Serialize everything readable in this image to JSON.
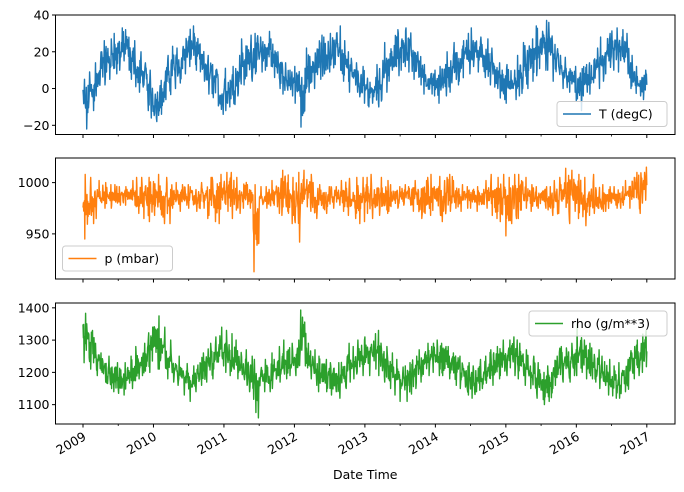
{
  "chart_data": [
    {
      "type": "line",
      "series": [
        {
          "name": "T (degC)",
          "color": "#1f77b4",
          "monthly_min": [
            -22,
            -12,
            -4,
            2,
            5,
            8,
            10,
            10,
            5,
            -2,
            -1,
            -16,
            -18,
            -14,
            -6,
            0,
            3,
            8,
            12,
            10,
            4,
            -3,
            -5,
            -14,
            -12,
            -10,
            -4,
            2,
            4,
            8,
            9,
            10,
            6,
            0,
            -3,
            -4,
            -8,
            -21,
            -2,
            0,
            5,
            8,
            9,
            10,
            4,
            -2,
            -2,
            -8,
            -10,
            -8,
            -10,
            -2,
            4,
            7,
            10,
            9,
            5,
            2,
            -3,
            -4,
            -8,
            -4,
            -2,
            2,
            4,
            8,
            12,
            9,
            6,
            2,
            0,
            -6,
            -8,
            -6,
            -4,
            0,
            4,
            7,
            10,
            10,
            4,
            0,
            -2,
            -2,
            -12,
            -4,
            -3,
            0,
            4,
            8,
            10,
            9,
            8,
            0,
            -4,
            -6
          ],
          "monthly_max": [
            5,
            9,
            14,
            26,
            27,
            30,
            33,
            32,
            26,
            20,
            14,
            10,
            4,
            8,
            18,
            23,
            22,
            32,
            34,
            28,
            22,
            18,
            13,
            5,
            11,
            12,
            18,
            27,
            29,
            30,
            28,
            31,
            27,
            20,
            14,
            10,
            12,
            11,
            22,
            25,
            29,
            28,
            30,
            34,
            26,
            20,
            14,
            12,
            10,
            6,
            13,
            25,
            24,
            32,
            35,
            33,
            25,
            20,
            13,
            10,
            12,
            13,
            20,
            25,
            26,
            30,
            33,
            28,
            27,
            22,
            14,
            10,
            13,
            10,
            18,
            25,
            27,
            34,
            37,
            36,
            24,
            18,
            17,
            12,
            12,
            13,
            14,
            22,
            28,
            30,
            33,
            32,
            30,
            18,
            12,
            10
          ]
        }
      ],
      "yticks": [
        40,
        20,
        0,
        -20
      ],
      "ylim": [
        -25,
        40
      ],
      "legend": "lower-right"
    },
    {
      "type": "line",
      "series": [
        {
          "name": "p (mbar)",
          "color": "#ff7f0e",
          "monthly_min": [
            945,
            960,
            965,
            975,
            975,
            980,
            978,
            978,
            978,
            970,
            965,
            962,
            968,
            960,
            960,
            975,
            972,
            978,
            975,
            972,
            975,
            965,
            962,
            960,
            972,
            965,
            970,
            975,
            975,
            913,
            975,
            975,
            978,
            968,
            972,
            960,
            942,
            975,
            972,
            965,
            975,
            970,
            975,
            978,
            972,
            968,
            965,
            960,
            970,
            965,
            968,
            970,
            972,
            975,
            978,
            978,
            972,
            965,
            970,
            968,
            968,
            962,
            972,
            975,
            972,
            975,
            975,
            972,
            975,
            968,
            965,
            962,
            948,
            960,
            965,
            975,
            972,
            975,
            975,
            972,
            968,
            970,
            960,
            972,
            965,
            958,
            968,
            970,
            972,
            972,
            975,
            975,
            978,
            975,
            970,
            980
          ],
          "monthly_max": [
            1008,
            1005,
            1002,
            1000,
            998,
            998,
            996,
            996,
            1002,
            1005,
            1005,
            1005,
            1008,
            1002,
            1005,
            1000,
            998,
            998,
            996,
            996,
            1000,
            1005,
            1005,
            1008,
            1010,
            1010,
            1005,
            1002,
            998,
            998,
            996,
            996,
            1002,
            1004,
            1012,
            1005,
            1010,
            1012,
            1008,
            1000,
            998,
            996,
            996,
            996,
            1002,
            1004,
            1005,
            1005,
            1005,
            1008,
            1005,
            1002,
            998,
            996,
            998,
            996,
            1002,
            1004,
            1005,
            1008,
            1006,
            1002,
            1008,
            1002,
            998,
            996,
            996,
            996,
            1002,
            1008,
            1005,
            1008,
            1005,
            1008,
            1008,
            1005,
            998,
            996,
            996,
            996,
            1002,
            1005,
            1014,
            1012,
            1008,
            1005,
            1008,
            1000,
            998,
            996,
            996,
            996,
            1002,
            1005,
            1010,
            1015
          ]
        }
      ],
      "yticks": [
        1000,
        950
      ],
      "ylim": [
        906,
        1024
      ],
      "legend": "lower-left"
    },
    {
      "type": "line",
      "series": [
        {
          "name": "rho (g/m**3)",
          "color": "#2ca02c",
          "monthly_min": [
            1230,
            1210,
            1190,
            1170,
            1150,
            1140,
            1135,
            1130,
            1150,
            1180,
            1190,
            1200,
            1210,
            1210,
            1180,
            1170,
            1160,
            1130,
            1110,
            1140,
            1160,
            1170,
            1180,
            1220,
            1200,
            1190,
            1180,
            1160,
            1140,
            1059,
            1140,
            1140,
            1150,
            1170,
            1180,
            1190,
            1190,
            1220,
            1180,
            1160,
            1140,
            1140,
            1130,
            1120,
            1150,
            1170,
            1180,
            1190,
            1190,
            1210,
            1190,
            1170,
            1150,
            1130,
            1110,
            1110,
            1150,
            1170,
            1190,
            1200,
            1190,
            1190,
            1180,
            1160,
            1150,
            1130,
            1120,
            1140,
            1150,
            1160,
            1180,
            1190,
            1190,
            1190,
            1180,
            1160,
            1150,
            1120,
            1100,
            1110,
            1150,
            1170,
            1170,
            1190,
            1190,
            1180,
            1180,
            1170,
            1150,
            1130,
            1120,
            1120,
            1140,
            1180,
            1190,
            1200
          ],
          "monthly_max": [
            1383,
            1330,
            1290,
            1260,
            1250,
            1230,
            1225,
            1230,
            1250,
            1280,
            1290,
            1340,
            1375,
            1340,
            1300,
            1260,
            1250,
            1240,
            1220,
            1230,
            1260,
            1290,
            1310,
            1340,
            1330,
            1320,
            1300,
            1270,
            1250,
            1240,
            1230,
            1240,
            1260,
            1280,
            1300,
            1290,
            1300,
            1393,
            1290,
            1270,
            1250,
            1240,
            1230,
            1230,
            1260,
            1290,
            1300,
            1300,
            1310,
            1320,
            1330,
            1280,
            1260,
            1240,
            1220,
            1230,
            1250,
            1270,
            1290,
            1290,
            1300,
            1290,
            1280,
            1260,
            1250,
            1230,
            1220,
            1240,
            1250,
            1270,
            1280,
            1300,
            1300,
            1310,
            1290,
            1270,
            1250,
            1230,
            1200,
            1220,
            1250,
            1280,
            1300,
            1290,
            1350,
            1300,
            1290,
            1270,
            1250,
            1240,
            1220,
            1230,
            1240,
            1280,
            1300,
            1330
          ]
        }
      ],
      "yticks": [
        1400,
        1300,
        1200,
        1100
      ],
      "ylim": [
        1040,
        1415
      ],
      "legend": "upper-right"
    }
  ],
  "x_axis": {
    "label": "Date Time",
    "ticks": [
      "2009",
      "2010",
      "2011",
      "2012",
      "2013",
      "2014",
      "2015",
      "2016",
      "2017"
    ],
    "start_year": 2009,
    "range": [
      2008.61,
      2017.4
    ]
  }
}
